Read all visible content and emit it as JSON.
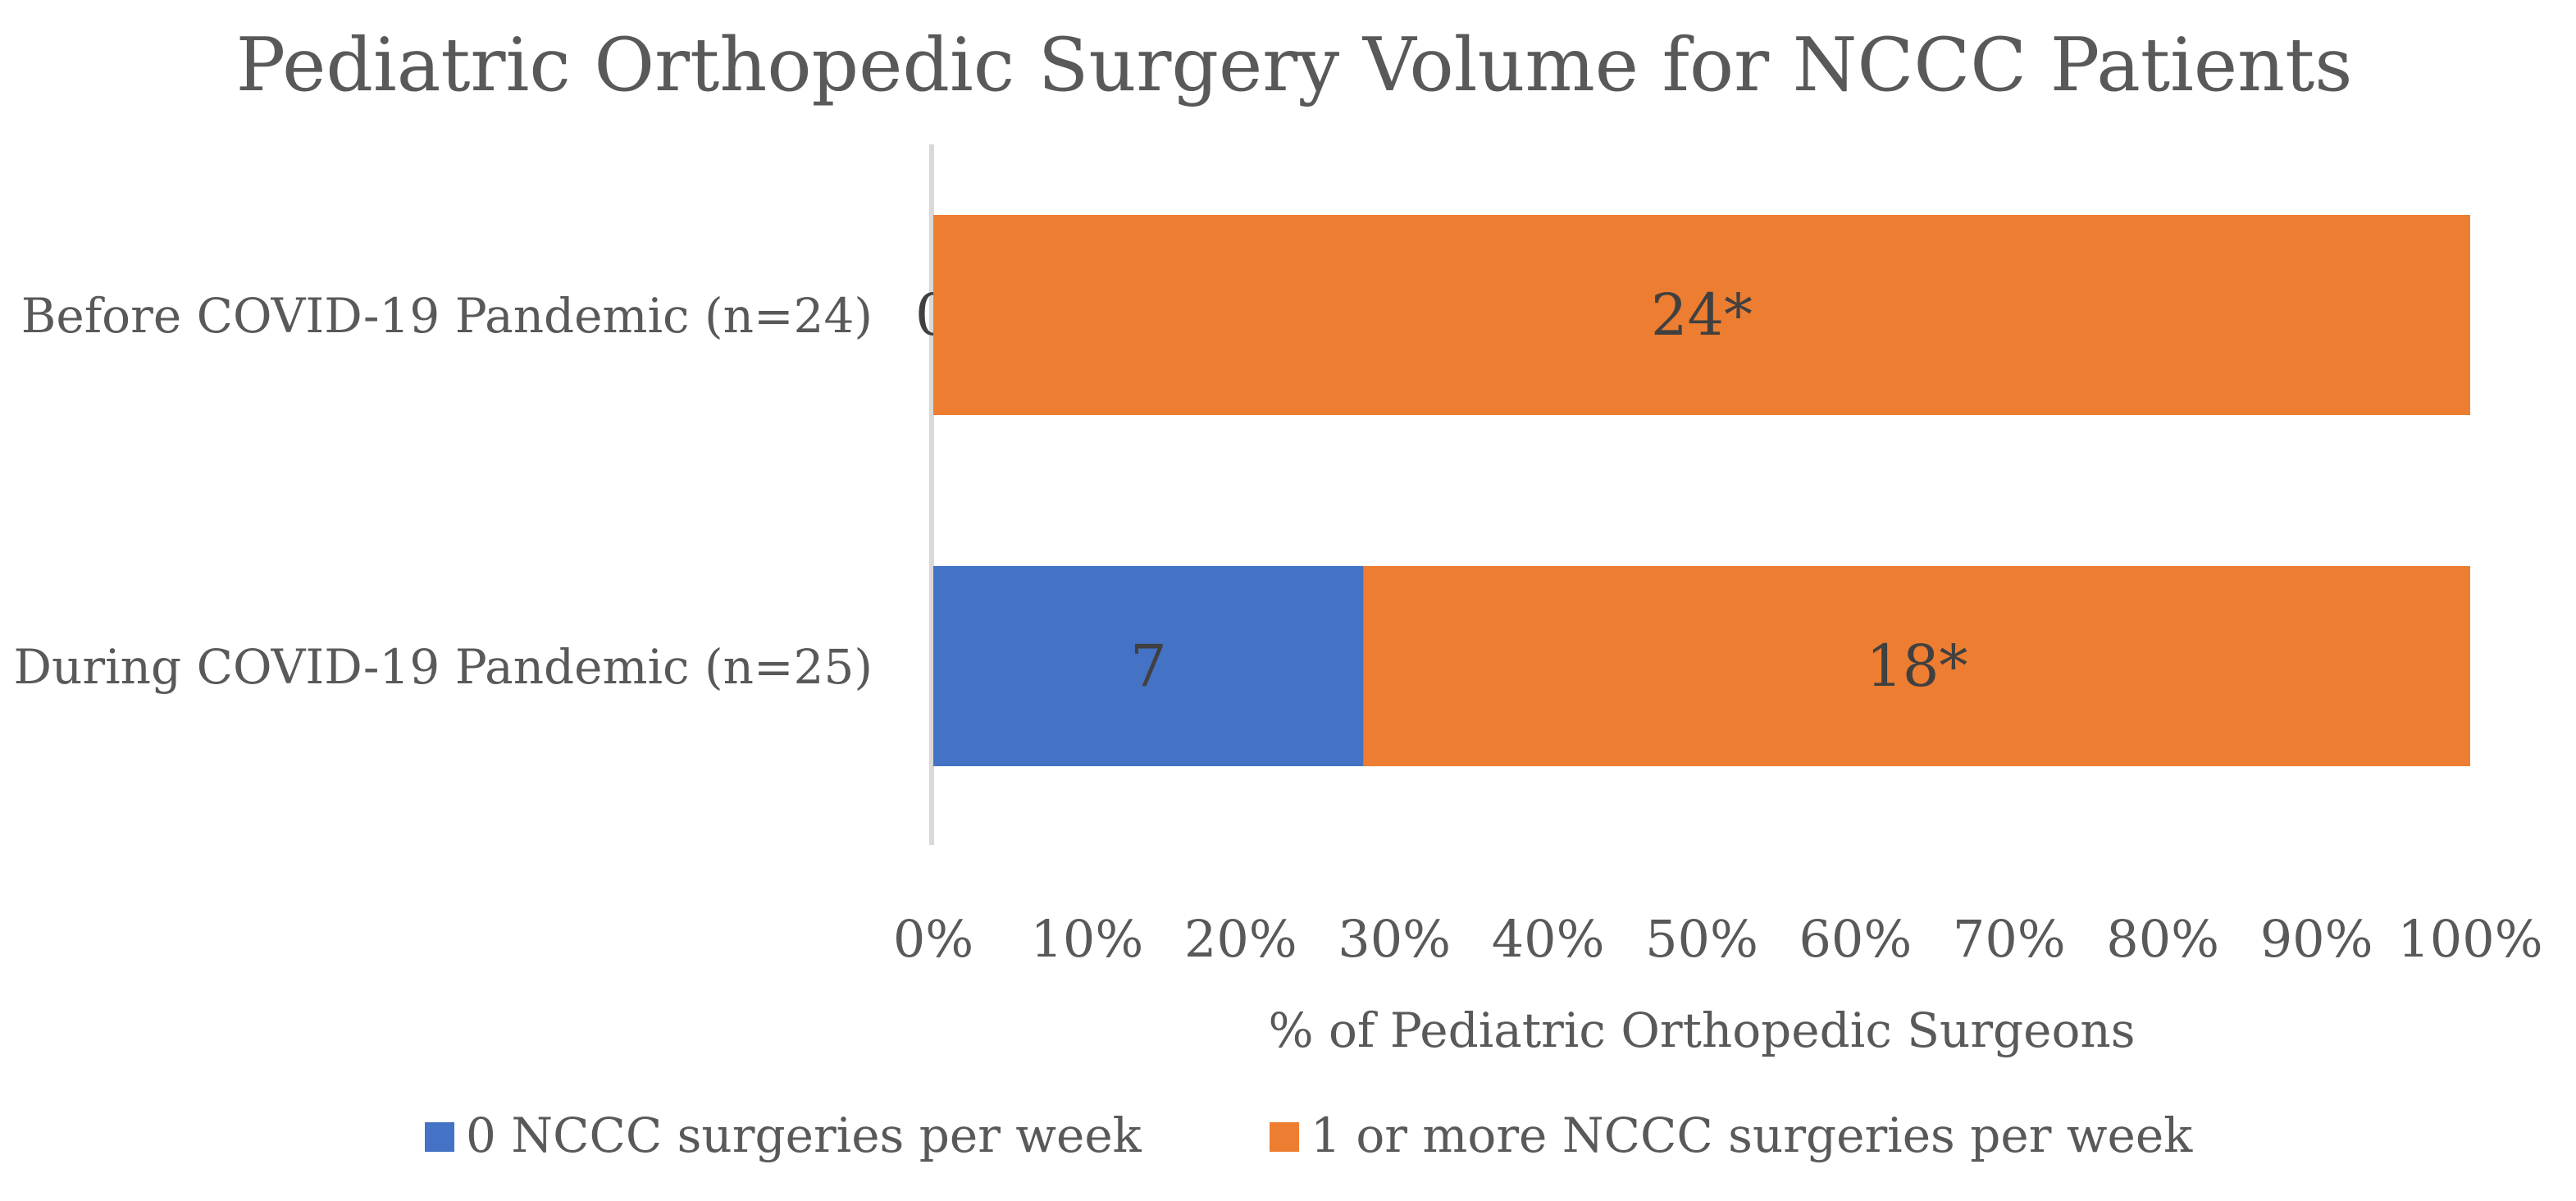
{
  "chart_data": {
    "type": "bar",
    "orientation": "horizontal",
    "stacked": "percent",
    "title": "Pediatric Orthopedic Surgery Volume for NCCC Patients",
    "xlabel": "% of Pediatric Orthopedic Surgeons",
    "ylabel": "",
    "categories": [
      "Before COVID-19 Pandemic (n=24)",
      "During COVID-19 Pandemic (n=25)"
    ],
    "series": [
      {
        "name": "0 NCCC surgeries per week",
        "values": [
          0,
          7
        ],
        "data_labels": [
          "0",
          "7"
        ],
        "color": "#4472C4"
      },
      {
        "name": "1 or more NCCC surgeries per week",
        "values": [
          24,
          18
        ],
        "data_labels": [
          "24*",
          "18*"
        ],
        "color": "#ED7D31"
      }
    ],
    "xlim": [
      0,
      100
    ],
    "xticks": [
      "0%",
      "10%",
      "20%",
      "30%",
      "40%",
      "50%",
      "60%",
      "70%",
      "80%",
      "90%",
      "100%"
    ],
    "grid": false,
    "legend": "bottom"
  }
}
